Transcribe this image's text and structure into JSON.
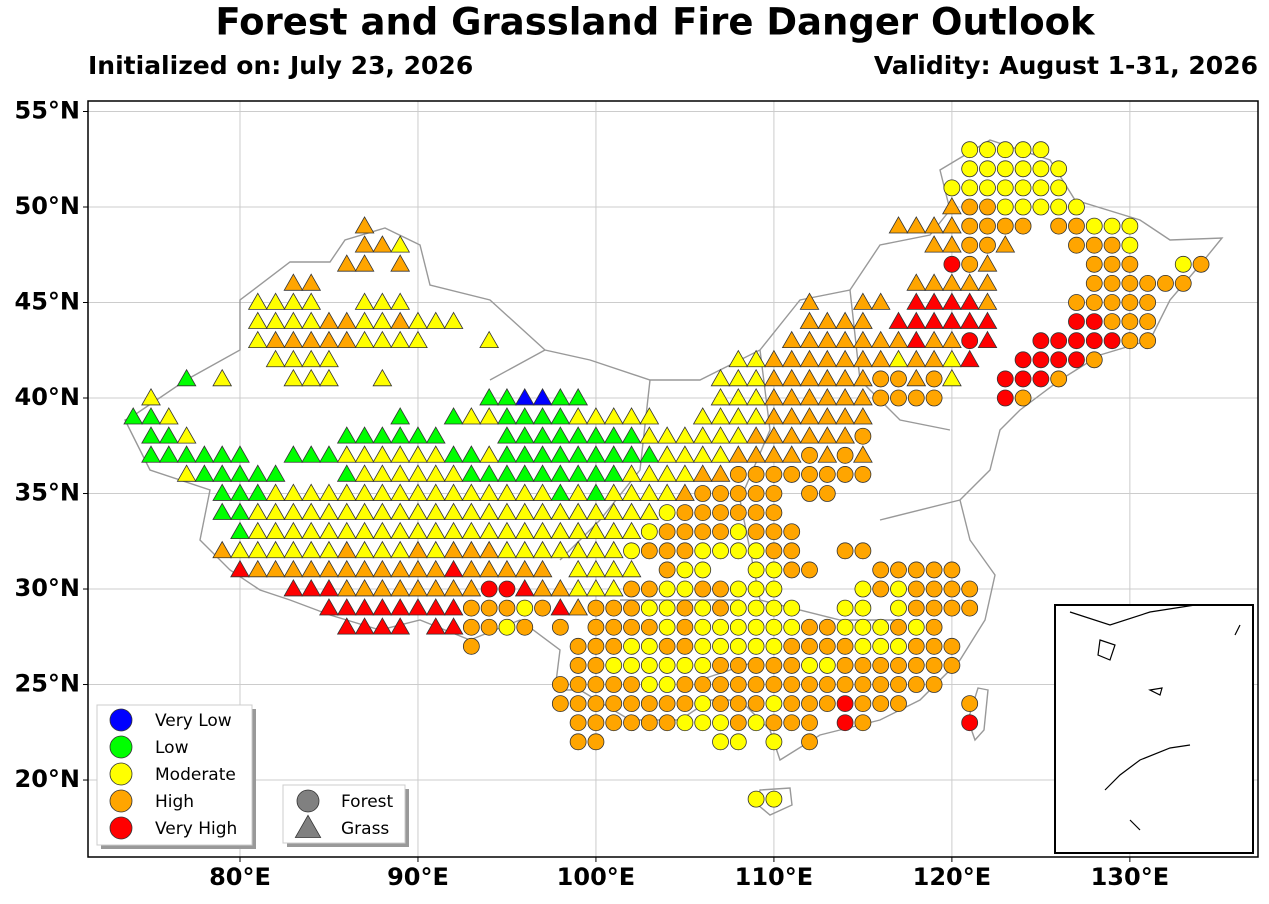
{
  "title": "Forest and Grassland Fire Danger Outlook",
  "subtitle_left": "Initialized on: July 23, 2026",
  "subtitle_right": "Validity: August 1-31, 2026",
  "map": {
    "xlim": [
      71.46,
      137.2
    ],
    "ylim": [
      15.97,
      55.55
    ],
    "grid": true,
    "xticks": [
      {
        "value": 80,
        "label": "80°E"
      },
      {
        "value": 90,
        "label": "90°E"
      },
      {
        "value": 100,
        "label": "100°E"
      },
      {
        "value": 110,
        "label": "110°E"
      },
      {
        "value": 120,
        "label": "120°E"
      },
      {
        "value": 130,
        "label": "130°E"
      }
    ],
    "yticks": [
      {
        "value": 20,
        "label": "20°N"
      },
      {
        "value": 25,
        "label": "25°N"
      },
      {
        "value": 30,
        "label": "30°N"
      },
      {
        "value": 35,
        "label": "35°N"
      },
      {
        "value": 40,
        "label": "40°N"
      },
      {
        "value": 45,
        "label": "45°N"
      },
      {
        "value": 50,
        "label": "50°N"
      },
      {
        "value": 55,
        "label": "55°N"
      }
    ],
    "rows": [
      {
        "lat": 53,
        "lon": 121,
        "cells": "YYYYY"
      },
      {
        "lat": 52,
        "lon": 121,
        "cells": "YYYYYY"
      },
      {
        "lat": 51,
        "lon": 120,
        "cells": "YYYYYYY"
      },
      {
        "lat": 50,
        "lon": 120,
        "cells": "oOOYYYYY"
      },
      {
        "lat": 49,
        "lon": 87,
        "cells": "o"
      },
      {
        "lat": 49,
        "lon": 117,
        "cells": "ooooOOOO.OOYYY"
      },
      {
        "lat": 48,
        "lon": 87,
        "cells": "ooy"
      },
      {
        "lat": 48,
        "lon": 119,
        "cells": "ooOOo...OOOY"
      },
      {
        "lat": 47,
        "lon": 86,
        "cells": "oo.o"
      },
      {
        "lat": 47,
        "lon": 120,
        "cells": "ROo.....OOO..YO"
      },
      {
        "lat": 46,
        "lon": 83,
        "cells": "oo"
      },
      {
        "lat": 46,
        "lon": 118,
        "cells": "ooooo.....OOOOOO"
      },
      {
        "lat": 45,
        "lon": 81,
        "cells": "yyyy..yyy"
      },
      {
        "lat": 45,
        "lon": 112,
        "cells": "o..oo.rrrro....OOOOO"
      },
      {
        "lat": 44,
        "lon": 81,
        "cells": "yyyyooyyoyyy"
      },
      {
        "lat": 44,
        "lon": 112,
        "cells": "oooo.rrrrrr....RROOO"
      },
      {
        "lat": 43,
        "lon": 81,
        "cells": "yoooooyyyy...y"
      },
      {
        "lat": 43,
        "lon": 111,
        "cells": "ooooooorooRr..RRRRROO"
      },
      {
        "lat": 42,
        "lon": 82,
        "cells": "yyyy"
      },
      {
        "lat": 42,
        "lon": 108,
        "cells": "yyoooooooyooyr..RRRRO"
      },
      {
        "lat": 41,
        "lon": 77,
        "cells": "g.y...yyy..y"
      },
      {
        "lat": 41,
        "lon": 107,
        "cells": "yyyooooooOOoOy..RRRO"
      },
      {
        "lat": 40,
        "lon": 75,
        "cells": "y"
      },
      {
        "lat": 40,
        "lon": 94,
        "cells": "ggbbgg"
      },
      {
        "lat": 40,
        "lon": 107,
        "cells": "yyyooooooOOOO...RO"
      },
      {
        "lat": 39,
        "lon": 74,
        "cells": "ggy"
      },
      {
        "lat": 39,
        "lon": 89,
        "cells": "g"
      },
      {
        "lat": 39,
        "lon": 92,
        "cells": "gyyggggyyyyy"
      },
      {
        "lat": 39,
        "lon": 106,
        "cells": "yyyyoooooo"
      },
      {
        "lat": 38,
        "lon": 75,
        "cells": "ggy"
      },
      {
        "lat": 38,
        "lon": 86,
        "cells": "gggggg"
      },
      {
        "lat": 38,
        "lon": 95,
        "cells": "ggggggggyyyyyyooooooO"
      },
      {
        "lat": 37,
        "lon": 75,
        "cells": "gggggg"
      },
      {
        "lat": 37,
        "lon": 83,
        "cells": "gggyyyyyyggygggggggggyyyyooooOoOo"
      },
      {
        "lat": 36,
        "lon": 77,
        "cells": "yggggg"
      },
      {
        "lat": 36,
        "lon": 86,
        "cells": "gyyyyyygggggggggyyyyooOOOOOOOO"
      },
      {
        "lat": 35,
        "lon": 79,
        "cells": "gggyyyyyyyyyyyyyyyygygyyyyoOOOOO.OO"
      },
      {
        "lat": 34,
        "lon": 79,
        "cells": "ggyyyyyyyyyyyyyyyyyyyyyyyYOOOOOO"
      },
      {
        "lat": 33,
        "lon": 80,
        "cells": "gyyyyyyyyyyyyyyyyyyyyyyYOOOOYOOO"
      },
      {
        "lat": 32,
        "lon": 79,
        "cells": "oyyyyyyoyyyoyoooyyyyyyyYOOOYYYYOO..OO"
      },
      {
        "lat": 31,
        "lon": 80,
        "cells": "rooooooooooorooooo yyyy.OYY..YYOO...OOOOO"
      },
      {
        "lat": 30,
        "lon": 83,
        "cells": "rrrooooooooRRrooyyyOOYYOOYYY....YOYOOOO"
      },
      {
        "lat": 29,
        "lon": 85,
        "cells": "rrrrrrrrOOOYOroOOOYYOYOYYYY..YY.YOOOO"
      },
      {
        "lat": 28,
        "lon": 86,
        "cells": "rrrr.rr"
      },
      {
        "lat": 28,
        "lon": 93,
        "cells": "OOYO.O.OOOOYOYYYYYYOOYYYOYO"
      },
      {
        "lat": 27,
        "lon": 93,
        "cells": "O"
      },
      {
        "lat": 27,
        "lon": 99,
        "cells": "OOOYYOOYYYYYOOOOYYYOOO"
      },
      {
        "lat": 26,
        "lon": 99,
        "cells": "OOYYYYYYOOOOOYYOOOOOOO"
      },
      {
        "lat": 25,
        "lon": 98,
        "cells": "OOOOOYYOOOOOOOOOOOOOOO"
      },
      {
        "lat": 24,
        "lon": 98,
        "cells": "OOOOOOOOYOOOYOOOROOO...O"
      },
      {
        "lat": 23,
        "lon": 99,
        "cells": "OOOOOOYYYOYOOO.RO.....R"
      },
      {
        "lat": 22,
        "lon": 99,
        "cells": "OO......YY.Y.O"
      },
      {
        "lat": 19,
        "lon": 109,
        "cells": "YY"
      }
    ]
  },
  "legend": {
    "levels": [
      {
        "name": "Very Low",
        "color": "#0000ff"
      },
      {
        "name": "Low",
        "color": "#00ff00"
      },
      {
        "name": "Moderate",
        "color": "#ffff00"
      },
      {
        "name": "High",
        "color": "#ffa500"
      },
      {
        "name": "Very High",
        "color": "#ff0000"
      }
    ],
    "types": [
      {
        "name": "Forest",
        "shape": "circle"
      },
      {
        "name": "Grass",
        "shape": "triangle"
      }
    ]
  }
}
